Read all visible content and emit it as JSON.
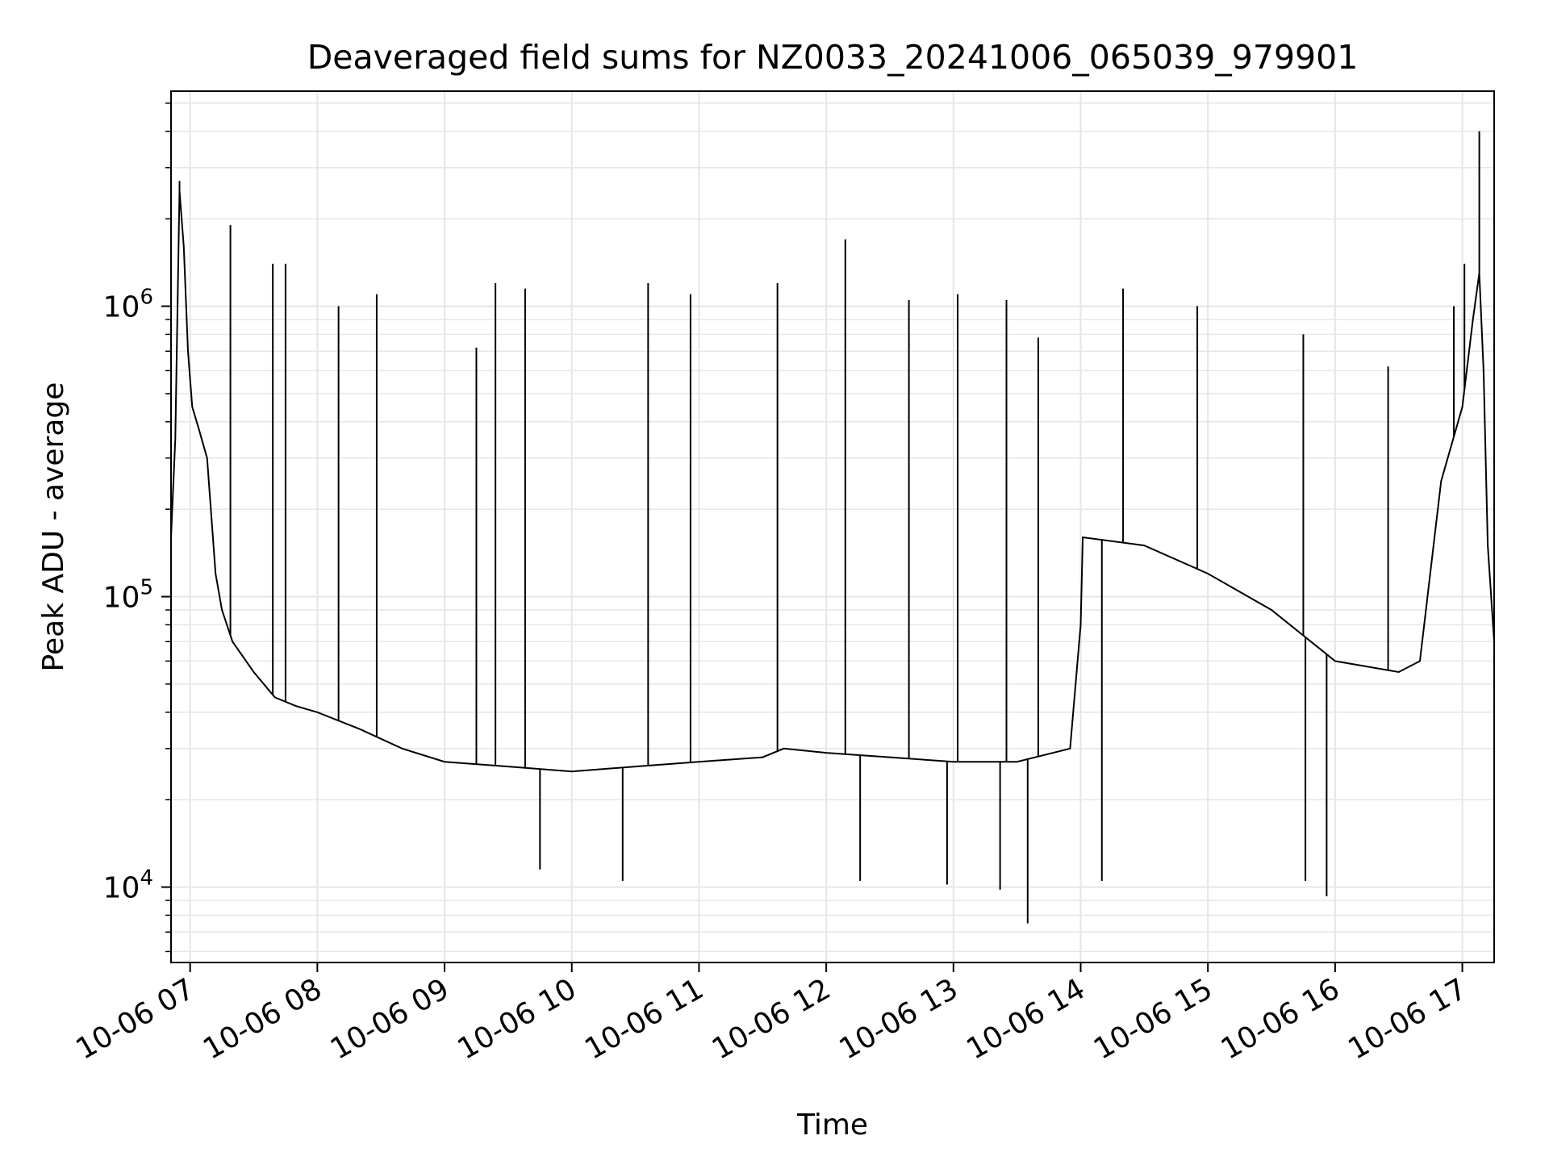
{
  "chart_data": {
    "type": "line",
    "title": "Deaveraged field sums for NZ0033_20241006_065039_979901",
    "xlabel": "Time",
    "ylabel": "Peak ADU - average",
    "y_scale": "log",
    "ylim": [
      5500,
      5500000
    ],
    "xlim": [
      "2024-10-06 06:51",
      "2024-10-06 17:15"
    ],
    "grid": true,
    "line_color": "#000000",
    "grid_color": "#e6e6e6",
    "x_ticks": [
      {
        "value": "2024-10-06 07:00",
        "label": "10-06 07"
      },
      {
        "value": "2024-10-06 08:00",
        "label": "10-06 08"
      },
      {
        "value": "2024-10-06 09:00",
        "label": "10-06 09"
      },
      {
        "value": "2024-10-06 10:00",
        "label": "10-06 10"
      },
      {
        "value": "2024-10-06 11:00",
        "label": "10-06 11"
      },
      {
        "value": "2024-10-06 12:00",
        "label": "10-06 12"
      },
      {
        "value": "2024-10-06 13:00",
        "label": "10-06 13"
      },
      {
        "value": "2024-10-06 14:00",
        "label": "10-06 14"
      },
      {
        "value": "2024-10-06 15:00",
        "label": "10-06 15"
      },
      {
        "value": "2024-10-06 16:00",
        "label": "10-06 16"
      },
      {
        "value": "2024-10-06 17:00",
        "label": "10-06 17"
      }
    ],
    "y_ticks": [
      {
        "value": 10000,
        "base": "10",
        "exp": "4"
      },
      {
        "value": 100000,
        "base": "10",
        "exp": "5"
      },
      {
        "value": 1000000,
        "base": "10",
        "exp": "6"
      }
    ],
    "series": [
      {
        "x": [
          "2024-10-06 06:51",
          "2024-10-06 06:53",
          "2024-10-06 06:55",
          "2024-10-06 06:57",
          "2024-10-06 06:59",
          "2024-10-06 07:01",
          "2024-10-06 07:04",
          "2024-10-06 07:08",
          "2024-10-06 07:12",
          "2024-10-06 07:15",
          "2024-10-06 07:20",
          "2024-10-06 07:30",
          "2024-10-06 07:40",
          "2024-10-06 07:50",
          "2024-10-06 08:00",
          "2024-10-06 08:20",
          "2024-10-06 08:40",
          "2024-10-06 09:00",
          "2024-10-06 09:30",
          "2024-10-06 10:00",
          "2024-10-06 10:30",
          "2024-10-06 11:00",
          "2024-10-06 11:30",
          "2024-10-06 11:40",
          "2024-10-06 12:00",
          "2024-10-06 12:30",
          "2024-10-06 13:00",
          "2024-10-06 13:30",
          "2024-10-06 13:55",
          "2024-10-06 14:00",
          "2024-10-06 14:01",
          "2024-10-06 14:30",
          "2024-10-06 15:00",
          "2024-10-06 15:30",
          "2024-10-06 16:00",
          "2024-10-06 16:30",
          "2024-10-06 16:40",
          "2024-10-06 16:50",
          "2024-10-06 17:00",
          "2024-10-06 17:05",
          "2024-10-06 17:08",
          "2024-10-06 17:10",
          "2024-10-06 17:12",
          "2024-10-06 17:15"
        ],
        "y": [
          160000,
          350000,
          2500000,
          1600000,
          700000,
          450000,
          380000,
          300000,
          120000,
          90000,
          70000,
          55000,
          45000,
          42000,
          40000,
          35000,
          30000,
          27000,
          26000,
          25000,
          26000,
          27000,
          28000,
          30000,
          29000,
          28000,
          27000,
          27000,
          30000,
          80000,
          160000,
          150000,
          120000,
          90000,
          60000,
          55000,
          60000,
          250000,
          450000,
          900000,
          1300000,
          600000,
          150000,
          70000
        ]
      }
    ],
    "annotations": {
      "spike_peaks": [
        {
          "x": "2024-10-06 06:55",
          "y": 2700000
        },
        {
          "x": "2024-10-06 07:19",
          "y": 1900000
        },
        {
          "x": "2024-10-06 07:39",
          "y": 1400000
        },
        {
          "x": "2024-10-06 07:45",
          "y": 1400000
        },
        {
          "x": "2024-10-06 08:10",
          "y": 1000000
        },
        {
          "x": "2024-10-06 08:28",
          "y": 1100000
        },
        {
          "x": "2024-10-06 09:15",
          "y": 720000
        },
        {
          "x": "2024-10-06 09:24",
          "y": 1200000
        },
        {
          "x": "2024-10-06 09:38",
          "y": 1150000
        },
        {
          "x": "2024-10-06 10:36",
          "y": 1200000
        },
        {
          "x": "2024-10-06 10:56",
          "y": 1100000
        },
        {
          "x": "2024-10-06 11:37",
          "y": 1200000
        },
        {
          "x": "2024-10-06 12:09",
          "y": 1700000
        },
        {
          "x": "2024-10-06 12:39",
          "y": 1050000
        },
        {
          "x": "2024-10-06 13:02",
          "y": 1100000
        },
        {
          "x": "2024-10-06 13:25",
          "y": 1050000
        },
        {
          "x": "2024-10-06 13:40",
          "y": 780000
        },
        {
          "x": "2024-10-06 14:20",
          "y": 1150000
        },
        {
          "x": "2024-10-06 14:55",
          "y": 1000000
        },
        {
          "x": "2024-10-06 15:45",
          "y": 800000
        },
        {
          "x": "2024-10-06 16:25",
          "y": 620000
        },
        {
          "x": "2024-10-06 16:56",
          "y": 1000000
        },
        {
          "x": "2024-10-06 17:01",
          "y": 1400000
        },
        {
          "x": "2024-10-06 17:08",
          "y": 4000000
        }
      ],
      "dip_minima": [
        {
          "x": "2024-10-06 09:45",
          "y": 11500
        },
        {
          "x": "2024-10-06 10:24",
          "y": 10500
        },
        {
          "x": "2024-10-06 12:16",
          "y": 10500
        },
        {
          "x": "2024-10-06 12:57",
          "y": 10200
        },
        {
          "x": "2024-10-06 13:22",
          "y": 9800
        },
        {
          "x": "2024-10-06 13:35",
          "y": 7500
        },
        {
          "x": "2024-10-06 14:10",
          "y": 10500
        },
        {
          "x": "2024-10-06 15:46",
          "y": 10500
        },
        {
          "x": "2024-10-06 15:56",
          "y": 9300
        }
      ]
    }
  }
}
